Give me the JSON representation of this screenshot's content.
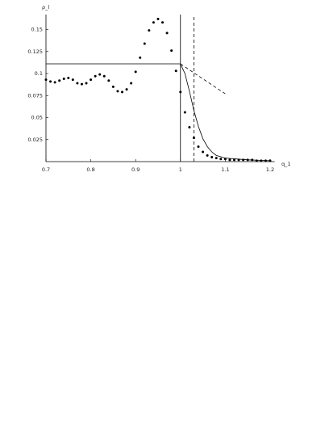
{
  "chart_data": {
    "type": "scatter",
    "y_label": "ρ_l",
    "x_label": "q_1",
    "xlim": [
      0.7,
      1.21
    ],
    "ylim": [
      0,
      0.167
    ],
    "xticks": [
      0.7,
      0.8,
      0.9,
      1,
      1.1,
      1.2
    ],
    "yticks": [
      0.025,
      0.05,
      0.075,
      0.1,
      0.125,
      0.15
    ],
    "color": "#000000",
    "series": [
      {
        "style": "dots",
        "x": [
          0.7,
          0.71,
          0.72,
          0.73,
          0.74,
          0.75,
          0.76,
          0.77,
          0.78,
          0.79,
          0.8,
          0.81,
          0.82,
          0.83,
          0.84,
          0.85,
          0.86,
          0.87,
          0.88,
          0.89,
          0.9,
          0.91,
          0.92,
          0.93,
          0.94,
          0.95,
          0.96,
          0.97,
          0.98,
          0.99,
          1,
          1.01,
          1.02,
          1.03,
          1.04,
          1.05,
          1.06,
          1.07,
          1.08,
          1.09,
          1.1,
          1.11,
          1.12,
          1.13,
          1.14,
          1.15,
          1.16,
          1.17,
          1.18,
          1.19,
          1.2
        ],
        "values": [
          0.093,
          0.091,
          0.09,
          0.092,
          0.094,
          0.095,
          0.093,
          0.089,
          0.088,
          0.089,
          0.093,
          0.097,
          0.099,
          0.097,
          0.092,
          0.085,
          0.08,
          0.079,
          0.082,
          0.089,
          0.102,
          0.118,
          0.134,
          0.149,
          0.158,
          0.162,
          0.158,
          0.146,
          0.126,
          0.103,
          0.079,
          0.056,
          0.039,
          0.027,
          0.017,
          0.011,
          0.007,
          0.005,
          0.004,
          0.003,
          0.003,
          0.002,
          0.002,
          0.002,
          0.002,
          0.002,
          0.002,
          0.001,
          0.001,
          0.001,
          0.001
        ]
      },
      {
        "style": "solid",
        "x": [
          0.7,
          1,
          1.01,
          1.02,
          1.03,
          1.04,
          1.05,
          1.06,
          1.07,
          1.08,
          1.1,
          1.15,
          1.2
        ],
        "values": [
          0.111,
          0.111,
          0.1,
          0.08,
          0.058,
          0.04,
          0.026,
          0.017,
          0.011,
          0.007,
          0.004,
          0.002,
          0.001
        ]
      },
      {
        "style": "dashed",
        "x": [
          1,
          1.1
        ],
        "values": [
          0.111,
          0.077
        ]
      },
      {
        "style": "solid",
        "x": [
          1,
          1
        ],
        "values": [
          0,
          0.167
        ]
      },
      {
        "style": "dashed",
        "x": [
          1.03,
          1.03
        ],
        "values": [
          0,
          0.167
        ]
      }
    ]
  }
}
